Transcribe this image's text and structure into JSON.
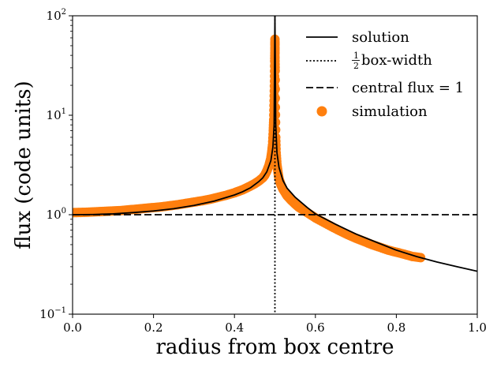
{
  "chart_data": {
    "type": "line",
    "xlabel": "radius from box centre",
    "ylabel": "flux (code units)",
    "xlim": [
      0.0,
      1.0
    ],
    "ylim": [
      0.1,
      100
    ],
    "yscale": "log",
    "grid": false,
    "legend_placement": "top-right",
    "x_ticks": [
      {
        "value": 0.0,
        "label": "0.0"
      },
      {
        "value": 0.2,
        "label": "0.2"
      },
      {
        "value": 0.4,
        "label": "0.4"
      },
      {
        "value": 0.6,
        "label": "0.6"
      },
      {
        "value": 0.8,
        "label": "0.8"
      },
      {
        "value": 1.0,
        "label": "1.0"
      }
    ],
    "y_ticks": [
      {
        "value": 0.1,
        "base": "10",
        "exp": "−1"
      },
      {
        "value": 1,
        "base": "10",
        "exp": "0"
      },
      {
        "value": 10,
        "base": "10",
        "exp": "1"
      },
      {
        "value": 100,
        "base": "10",
        "exp": "2"
      }
    ],
    "legend": [
      {
        "key": "solution",
        "label": "solution",
        "style": "solid",
        "color": "#000000"
      },
      {
        "key": "half_box",
        "label_pre": "1",
        "label_den": "2",
        "label_post": "box-width",
        "style": "dotted",
        "color": "#000000"
      },
      {
        "key": "central",
        "label": "central flux = 1",
        "style": "dashed",
        "color": "#000000"
      },
      {
        "key": "simulation",
        "label": "simulation",
        "style": "marker",
        "color": "#ff7f0e"
      }
    ],
    "series": [
      {
        "name": "solution",
        "color": "#000000",
        "style": "solid",
        "x": [
          0.0,
          0.05,
          0.1,
          0.15,
          0.2,
          0.25,
          0.3,
          0.35,
          0.4,
          0.42,
          0.44,
          0.46,
          0.47,
          0.48,
          0.49,
          0.495,
          0.498,
          0.5,
          0.502,
          0.505,
          0.51,
          0.52,
          0.53,
          0.55,
          0.58,
          0.6,
          0.65,
          0.7,
          0.75,
          0.8,
          0.85,
          0.9,
          0.95,
          1.0
        ],
        "y": [
          1.0,
          1.005,
          1.02,
          1.05,
          1.09,
          1.15,
          1.24,
          1.37,
          1.58,
          1.7,
          1.87,
          2.15,
          2.35,
          2.7,
          3.5,
          4.8,
          8,
          100,
          8,
          4.2,
          3.0,
          2.2,
          1.85,
          1.5,
          1.18,
          1.02,
          0.8,
          0.64,
          0.53,
          0.44,
          0.38,
          0.335,
          0.3,
          0.27
        ]
      },
      {
        "name": "simulation",
        "color": "#ff7f0e",
        "style": "scatter",
        "x": [
          0.0,
          0.02,
          0.04,
          0.06,
          0.08,
          0.1,
          0.12,
          0.14,
          0.16,
          0.18,
          0.2,
          0.22,
          0.24,
          0.26,
          0.28,
          0.3,
          0.32,
          0.34,
          0.36,
          0.38,
          0.4,
          0.41,
          0.42,
          0.43,
          0.44,
          0.45,
          0.46,
          0.47,
          0.475,
          0.48,
          0.485,
          0.49,
          0.492,
          0.494,
          0.496,
          0.497,
          0.498,
          0.499,
          0.4995,
          0.5,
          0.5,
          0.5,
          0.5005,
          0.501,
          0.502,
          0.503,
          0.505,
          0.508,
          0.51,
          0.515,
          0.52,
          0.53,
          0.54,
          0.55,
          0.56,
          0.58,
          0.6,
          0.62,
          0.64,
          0.66,
          0.68,
          0.7,
          0.72,
          0.74,
          0.76,
          0.78,
          0.8,
          0.82,
          0.84,
          0.86
        ],
        "y": [
          1.05,
          1.055,
          1.06,
          1.07,
          1.08,
          1.09,
          1.1,
          1.12,
          1.14,
          1.16,
          1.18,
          1.2,
          1.23,
          1.26,
          1.3,
          1.34,
          1.38,
          1.43,
          1.5,
          1.57,
          1.66,
          1.72,
          1.78,
          1.86,
          1.95,
          2.05,
          2.18,
          2.35,
          2.5,
          2.75,
          3.1,
          3.7,
          4.2,
          5.0,
          7.0,
          9.0,
          14.0,
          22.0,
          35.0,
          45.0,
          58.0,
          38.0,
          28.0,
          12.0,
          6.0,
          4.2,
          3.2,
          2.6,
          2.3,
          2.0,
          1.8,
          1.55,
          1.4,
          1.28,
          1.18,
          1.05,
          0.93,
          0.84,
          0.76,
          0.69,
          0.63,
          0.58,
          0.54,
          0.5,
          0.47,
          0.44,
          0.42,
          0.4,
          0.38,
          0.37
        ]
      }
    ],
    "reference_lines": [
      {
        "name": "half_box",
        "orientation": "vertical",
        "x": 0.5,
        "style": "dotted",
        "color": "#000000"
      },
      {
        "name": "central",
        "orientation": "horizontal",
        "y": 1.0,
        "style": "dashed",
        "color": "#000000"
      }
    ]
  }
}
